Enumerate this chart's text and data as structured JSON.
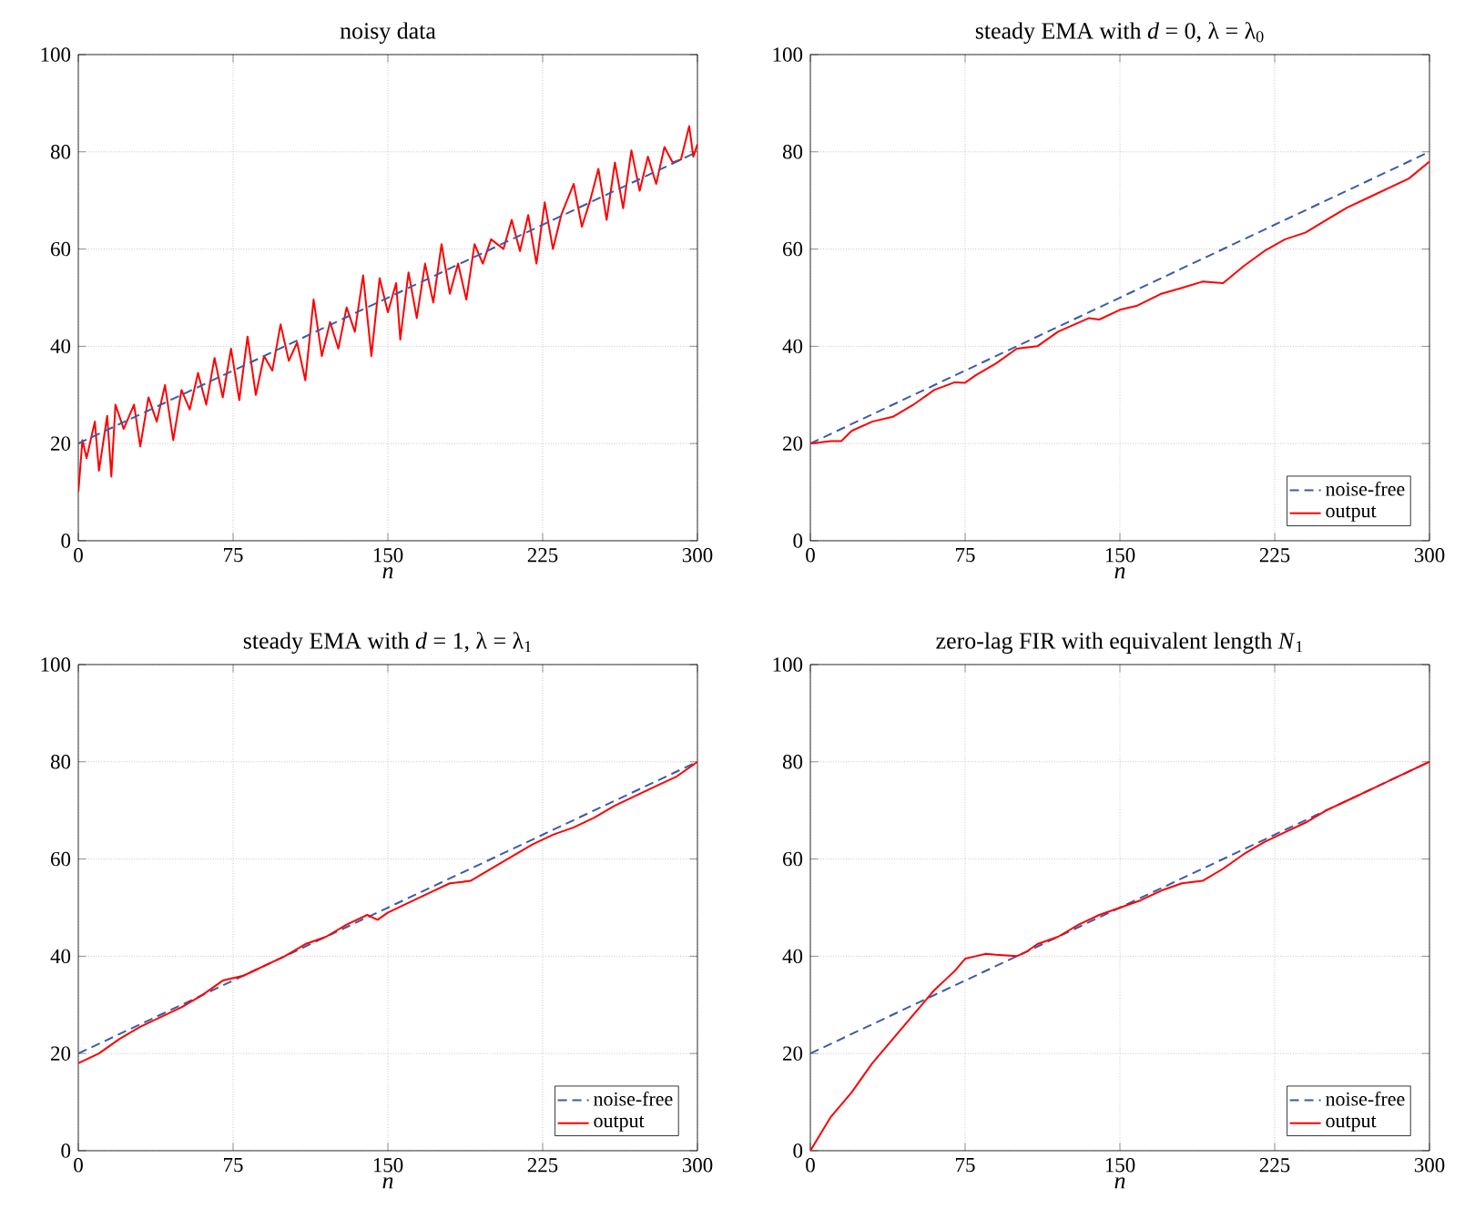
{
  "chart_data": [
    {
      "type": "line",
      "title": "noisy data",
      "xlabel": "n",
      "xlim": [
        0,
        300
      ],
      "ylim": [
        0,
        100
      ],
      "xticks": [
        0,
        75,
        150,
        225,
        300
      ],
      "yticks": [
        0,
        20,
        40,
        60,
        80,
        100
      ],
      "grid": true,
      "legend": false,
      "series": [
        {
          "color": "#ff0000",
          "line_style": "solid",
          "x": [
            0,
            2,
            4,
            8,
            10,
            14,
            16,
            18,
            22,
            27,
            30,
            34,
            38,
            42,
            46,
            50,
            54,
            58,
            62,
            66,
            70,
            74,
            78,
            82,
            86,
            90,
            94,
            98,
            102,
            106,
            110,
            114,
            118,
            122,
            126,
            130,
            134,
            138,
            142,
            146,
            150,
            154,
            156,
            160,
            164,
            168,
            172,
            176,
            180,
            184,
            188,
            192,
            196,
            200,
            206,
            210,
            214,
            218,
            222,
            226,
            230,
            234,
            240,
            244,
            248,
            252,
            256,
            260,
            264,
            268,
            272,
            276,
            280,
            284,
            288,
            292,
            296,
            298,
            300
          ],
          "values": [
            10,
            20.7,
            17,
            24.5,
            14.4,
            25.7,
            13.2,
            28,
            23,
            28,
            19.4,
            29.5,
            24.5,
            32,
            20.7,
            31,
            27,
            34.5,
            28,
            37.6,
            29.5,
            39.5,
            28.9,
            42,
            30,
            38,
            35,
            44.5,
            37,
            40.8,
            33,
            49.6,
            38,
            45,
            39.5,
            48,
            43,
            54.6,
            38,
            54,
            47,
            53,
            41.4,
            55.2,
            45.8,
            57,
            49,
            61,
            50.8,
            57,
            49.6,
            61,
            57,
            62,
            60,
            66,
            59.6,
            67,
            57,
            69.6,
            60,
            67,
            73.4,
            64.6,
            70,
            76.5,
            66,
            77.8,
            68.4,
            80.3,
            72,
            79,
            73.4,
            81,
            77.8,
            78.4,
            85.3,
            79,
            81.6
          ]
        },
        {
          "color": "#3a5ba8",
          "line_style": "dashed",
          "x": [
            0,
            300
          ],
          "values": [
            20,
            80
          ]
        }
      ]
    },
    {
      "type": "line",
      "title": "steady EMA with *d* = 0,  λ = λ$_{0}$",
      "xlabel": "n",
      "xlim": [
        0,
        300
      ],
      "ylim": [
        0,
        100
      ],
      "xticks": [
        0,
        75,
        150,
        225,
        300
      ],
      "yticks": [
        0,
        20,
        40,
        60,
        80,
        100
      ],
      "grid": true,
      "legend": "bottom right",
      "series": [
        {
          "name": "noise-free",
          "color": "#3a5ba8",
          "line_style": "dashed",
          "x": [
            0,
            300
          ],
          "values": [
            20,
            80
          ]
        },
        {
          "name": "output",
          "color": "#ff0000",
          "line_style": "solid",
          "x": [
            0,
            10,
            15,
            20,
            30,
            40,
            50,
            60,
            70,
            75,
            80,
            90,
            100,
            110,
            120,
            135,
            140,
            150,
            158,
            170,
            180,
            190,
            200,
            210,
            220,
            230,
            240,
            250,
            260,
            270,
            280,
            290,
            300
          ],
          "values": [
            20,
            20.5,
            20.5,
            22.6,
            24.5,
            25.5,
            28,
            31,
            32.6,
            32.5,
            34,
            36.5,
            39.5,
            40,
            43,
            45.8,
            45.5,
            47.5,
            48.3,
            50.8,
            52,
            53.3,
            53,
            56.5,
            59.6,
            62,
            63.4,
            66,
            68.5,
            70.5,
            72.5,
            74.5,
            78
          ]
        }
      ]
    },
    {
      "type": "line",
      "title": "steady EMA with *d* = 1,  λ = λ$_{1}$",
      "xlabel": "n",
      "xlim": [
        0,
        300
      ],
      "ylim": [
        0,
        100
      ],
      "xticks": [
        0,
        75,
        150,
        225,
        300
      ],
      "yticks": [
        0,
        20,
        40,
        60,
        80,
        100
      ],
      "grid": true,
      "legend": "bottom right",
      "series": [
        {
          "name": "noise-free",
          "color": "#3a5ba8",
          "line_style": "dashed",
          "x": [
            0,
            300
          ],
          "values": [
            20,
            80
          ]
        },
        {
          "name": "output",
          "color": "#ff0000",
          "line_style": "solid",
          "x": [
            0,
            10,
            20,
            30,
            40,
            50,
            60,
            70,
            75,
            80,
            90,
            100,
            110,
            120,
            130,
            140,
            145,
            150,
            160,
            170,
            180,
            190,
            200,
            210,
            220,
            230,
            240,
            250,
            260,
            270,
            280,
            290,
            300
          ],
          "values": [
            18,
            20,
            23,
            25.5,
            27.5,
            29.5,
            32,
            35,
            35.5,
            36,
            38,
            40,
            42.5,
            44,
            46.5,
            48.5,
            47.5,
            49,
            51,
            53,
            55,
            55.5,
            58,
            60.5,
            63,
            65,
            66.5,
            68.5,
            71,
            73,
            75,
            77,
            80
          ]
        }
      ]
    },
    {
      "type": "line",
      "title": "zero-lag FIR with equivalent length *N*$_{1}$",
      "xlabel": "n",
      "xlim": [
        0,
        300
      ],
      "ylim": [
        0,
        100
      ],
      "xticks": [
        0,
        75,
        150,
        225,
        300
      ],
      "yticks": [
        0,
        20,
        40,
        60,
        80,
        100
      ],
      "grid": true,
      "legend": "bottom right",
      "series": [
        {
          "name": "noise-free",
          "color": "#3a5ba8",
          "line_style": "dashed",
          "x": [
            0,
            300
          ],
          "values": [
            20,
            80
          ]
        },
        {
          "name": "output",
          "color": "#ff0000",
          "line_style": "solid",
          "x": [
            0,
            10,
            20,
            30,
            40,
            50,
            60,
            70,
            75,
            80,
            85,
            90,
            100,
            105,
            110,
            120,
            130,
            140,
            150,
            160,
            170,
            180,
            190,
            200,
            210,
            220,
            230,
            240,
            250,
            260,
            270,
            280,
            290,
            300
          ],
          "values": [
            0,
            7,
            12,
            18,
            23,
            28,
            33,
            37,
            39.5,
            40,
            40.5,
            40.3,
            40,
            41,
            42.5,
            44,
            46.5,
            48.5,
            50,
            51.5,
            53.5,
            55,
            55.5,
            58,
            61,
            63.5,
            65.5,
            67.5,
            70,
            72,
            74,
            76,
            78,
            80
          ]
        }
      ]
    }
  ]
}
